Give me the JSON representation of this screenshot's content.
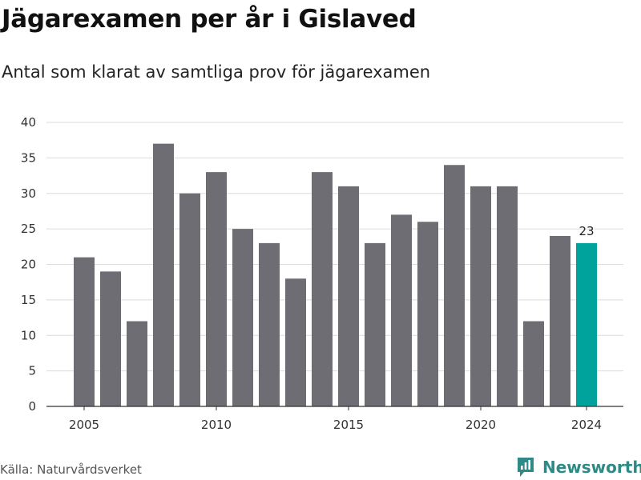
{
  "header": {
    "title": "Jägarexamen per år i Gislaved",
    "subtitle": "Antal som klarat av samtliga prov för jägarexamen"
  },
  "footer": {
    "source": "Källa: Naturvårdsverket",
    "brand": "Newsworthy"
  },
  "colors": {
    "bar": "#6e6d73",
    "highlight": "#00a39b",
    "grid": "#dcdcdc",
    "brand": "#2d8a86"
  },
  "icons": {
    "brand": "bar-chart-badge-icon"
  },
  "chart_data": {
    "type": "bar",
    "x": [
      2005,
      2006,
      2007,
      2008,
      2009,
      2010,
      2011,
      2012,
      2013,
      2014,
      2015,
      2016,
      2017,
      2018,
      2019,
      2020,
      2021,
      2022,
      2023,
      2024
    ],
    "values": [
      21,
      19,
      12,
      37,
      30,
      33,
      25,
      23,
      18,
      33,
      31,
      23,
      27,
      26,
      34,
      31,
      31,
      12,
      24,
      23
    ],
    "highlight": [
      2024
    ],
    "data_labels": [
      {
        "x": 2024,
        "text": "23"
      }
    ],
    "ylim": [
      0,
      40
    ],
    "yticks": [
      0,
      5,
      10,
      15,
      20,
      25,
      30,
      35,
      40
    ],
    "xticks": [
      2005,
      2010,
      2015,
      2020,
      2024
    ],
    "xlabel": "",
    "ylabel": "",
    "grid": true
  }
}
